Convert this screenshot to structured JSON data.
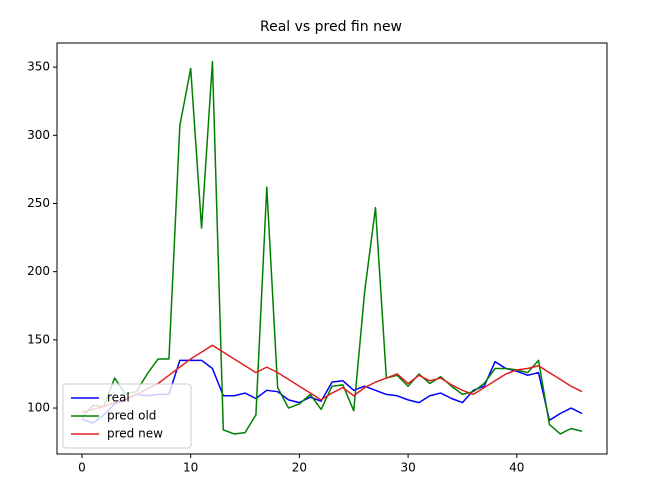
{
  "chart_data": {
    "type": "line",
    "title": "Real vs pred fin new",
    "x": [
      0,
      1,
      2,
      3,
      4,
      5,
      6,
      7,
      8,
      9,
      10,
      11,
      12,
      13,
      14,
      15,
      16,
      17,
      18,
      19,
      20,
      21,
      22,
      23,
      24,
      25,
      26,
      27,
      28,
      29,
      30,
      31,
      32,
      33,
      34,
      35,
      36,
      37,
      38,
      39,
      40,
      41,
      42,
      43,
      44,
      45,
      46
    ],
    "series": [
      {
        "name": "real",
        "color": "#0000ff",
        "values": [
          92,
          89,
          95,
          103,
          106,
          110,
          109,
          110,
          110,
          135,
          135,
          135,
          129,
          109,
          109,
          111,
          107,
          113,
          112,
          106,
          104,
          108,
          105,
          119,
          120,
          113,
          116,
          113,
          110,
          109,
          106,
          104,
          109,
          111,
          107,
          104,
          113,
          116,
          134,
          129,
          127,
          124,
          126,
          91,
          96,
          100,
          96
        ]
      },
      {
        "name": "pred old",
        "color": "#008000",
        "values": [
          93,
          102,
          101,
          122,
          110,
          112,
          125,
          136,
          136,
          307,
          349,
          232,
          354,
          84,
          81,
          82,
          95,
          262,
          115,
          100,
          103,
          110,
          99,
          116,
          117,
          98,
          185,
          247,
          122,
          124,
          116,
          125,
          118,
          123,
          116,
          110,
          112,
          118,
          129,
          129,
          128,
          126,
          135,
          88,
          81,
          85,
          83
        ]
      },
      {
        "name": "pred new",
        "color": "#e02020",
        "values": [
          97,
          99,
          101,
          104,
          107,
          110,
          114,
          118,
          124,
          130,
          136,
          141,
          146,
          141,
          136,
          131,
          126,
          130,
          126,
          121,
          116,
          111,
          106,
          111,
          115,
          109,
          115,
          119,
          122,
          125,
          118,
          124,
          120,
          122,
          117,
          113,
          110,
          115,
          120,
          125,
          128,
          129,
          131,
          126,
          121,
          116,
          112
        ]
      }
    ],
    "xlim": [
      -2.3,
      48.3
    ],
    "ylim": [
      66.3,
      367.7
    ],
    "xticks": [
      0,
      10,
      20,
      30,
      40
    ],
    "yticks": [
      100,
      150,
      200,
      250,
      300,
      350
    ],
    "legend": "lower left"
  }
}
